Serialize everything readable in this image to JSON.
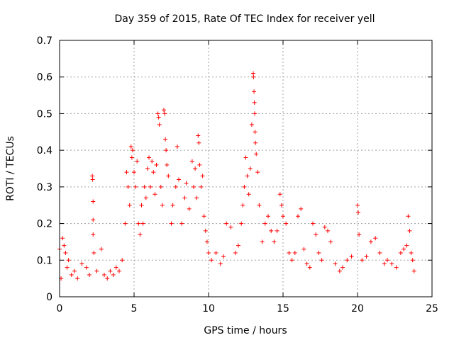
{
  "colors": {
    "series": "#ff0000",
    "axis": "#000000",
    "grid": "#a0a0a0",
    "background": "#ffffff"
  },
  "chart_data": {
    "type": "scatter",
    "title": "Day 359 of 2015, Rate Of TEC Index for receiver yell",
    "xlabel": "GPS time / hours",
    "ylabel": "ROTI / TECUs",
    "xlim": [
      0,
      25
    ],
    "ylim": [
      0,
      0.7
    ],
    "xticks": [
      0,
      5,
      10,
      15,
      20,
      25
    ],
    "yticks": [
      0,
      0.1,
      0.2,
      0.3,
      0.4,
      0.5,
      0.6,
      0.7
    ],
    "grid": true,
    "marker": "plus",
    "series": [
      {
        "name": "ROTI",
        "points": [
          [
            0.0,
            0.13
          ],
          [
            0.1,
            0.05
          ],
          [
            0.2,
            0.16
          ],
          [
            0.3,
            0.14
          ],
          [
            0.4,
            0.12
          ],
          [
            0.5,
            0.08
          ],
          [
            0.6,
            0.1
          ],
          [
            0.8,
            0.06
          ],
          [
            1.0,
            0.07
          ],
          [
            1.2,
            0.05
          ],
          [
            1.5,
            0.09
          ],
          [
            1.8,
            0.08
          ],
          [
            2.0,
            0.06
          ],
          [
            2.2,
            0.33
          ],
          [
            2.22,
            0.32
          ],
          [
            2.25,
            0.26
          ],
          [
            2.25,
            0.21
          ],
          [
            2.25,
            0.17
          ],
          [
            2.3,
            0.12
          ],
          [
            2.5,
            0.07
          ],
          [
            2.8,
            0.13
          ],
          [
            3.0,
            0.06
          ],
          [
            3.2,
            0.05
          ],
          [
            3.4,
            0.07
          ],
          [
            3.6,
            0.06
          ],
          [
            3.8,
            0.08
          ],
          [
            4.0,
            0.07
          ],
          [
            4.2,
            0.1
          ],
          [
            4.4,
            0.2
          ],
          [
            4.5,
            0.34
          ],
          [
            4.6,
            0.3
          ],
          [
            4.7,
            0.25
          ],
          [
            4.8,
            0.41
          ],
          [
            4.85,
            0.38
          ],
          [
            4.9,
            0.4
          ],
          [
            5.0,
            0.34
          ],
          [
            5.1,
            0.3
          ],
          [
            5.2,
            0.37
          ],
          [
            5.3,
            0.2
          ],
          [
            5.4,
            0.17
          ],
          [
            5.5,
            0.25
          ],
          [
            5.6,
            0.2
          ],
          [
            5.7,
            0.3
          ],
          [
            5.8,
            0.27
          ],
          [
            5.9,
            0.35
          ],
          [
            6.0,
            0.38
          ],
          [
            6.1,
            0.3
          ],
          [
            6.2,
            0.37
          ],
          [
            6.3,
            0.34
          ],
          [
            6.4,
            0.28
          ],
          [
            6.5,
            0.36
          ],
          [
            6.6,
            0.5
          ],
          [
            6.65,
            0.49
          ],
          [
            6.7,
            0.47
          ],
          [
            6.8,
            0.3
          ],
          [
            6.9,
            0.25
          ],
          [
            7.0,
            0.51
          ],
          [
            7.05,
            0.5
          ],
          [
            7.1,
            0.43
          ],
          [
            7.15,
            0.4
          ],
          [
            7.2,
            0.36
          ],
          [
            7.3,
            0.33
          ],
          [
            7.5,
            0.2
          ],
          [
            7.6,
            0.25
          ],
          [
            7.8,
            0.3
          ],
          [
            7.9,
            0.41
          ],
          [
            8.0,
            0.32
          ],
          [
            8.2,
            0.2
          ],
          [
            8.4,
            0.27
          ],
          [
            8.5,
            0.31
          ],
          [
            8.7,
            0.24
          ],
          [
            8.9,
            0.37
          ],
          [
            9.0,
            0.3
          ],
          [
            9.1,
            0.35
          ],
          [
            9.2,
            0.27
          ],
          [
            9.3,
            0.44
          ],
          [
            9.35,
            0.42
          ],
          [
            9.4,
            0.36
          ],
          [
            9.5,
            0.3
          ],
          [
            9.6,
            0.33
          ],
          [
            9.7,
            0.22
          ],
          [
            9.8,
            0.18
          ],
          [
            9.9,
            0.15
          ],
          [
            10.0,
            0.12
          ],
          [
            10.2,
            0.1
          ],
          [
            10.5,
            0.12
          ],
          [
            10.8,
            0.09
          ],
          [
            11.0,
            0.11
          ],
          [
            11.2,
            0.2
          ],
          [
            11.5,
            0.19
          ],
          [
            11.8,
            0.12
          ],
          [
            12.0,
            0.14
          ],
          [
            12.2,
            0.2
          ],
          [
            12.3,
            0.25
          ],
          [
            12.4,
            0.3
          ],
          [
            12.5,
            0.38
          ],
          [
            12.6,
            0.33
          ],
          [
            12.7,
            0.28
          ],
          [
            12.8,
            0.35
          ],
          [
            12.9,
            0.47
          ],
          [
            13.0,
            0.61
          ],
          [
            13.02,
            0.6
          ],
          [
            13.05,
            0.56
          ],
          [
            13.08,
            0.53
          ],
          [
            13.1,
            0.5
          ],
          [
            13.12,
            0.45
          ],
          [
            13.15,
            0.42
          ],
          [
            13.2,
            0.39
          ],
          [
            13.3,
            0.34
          ],
          [
            13.4,
            0.25
          ],
          [
            13.6,
            0.15
          ],
          [
            13.8,
            0.2
          ],
          [
            14.0,
            0.22
          ],
          [
            14.2,
            0.18
          ],
          [
            14.4,
            0.15
          ],
          [
            14.6,
            0.18
          ],
          [
            14.8,
            0.28
          ],
          [
            14.9,
            0.25
          ],
          [
            15.0,
            0.22
          ],
          [
            15.2,
            0.2
          ],
          [
            15.4,
            0.12
          ],
          [
            15.6,
            0.1
          ],
          [
            15.8,
            0.12
          ],
          [
            16.0,
            0.22
          ],
          [
            16.2,
            0.24
          ],
          [
            16.4,
            0.13
          ],
          [
            16.6,
            0.09
          ],
          [
            16.8,
            0.08
          ],
          [
            17.0,
            0.2
          ],
          [
            17.2,
            0.17
          ],
          [
            17.4,
            0.12
          ],
          [
            17.6,
            0.1
          ],
          [
            17.8,
            0.19
          ],
          [
            18.0,
            0.18
          ],
          [
            18.2,
            0.15
          ],
          [
            18.5,
            0.09
          ],
          [
            18.8,
            0.07
          ],
          [
            19.0,
            0.08
          ],
          [
            19.3,
            0.1
          ],
          [
            19.6,
            0.11
          ],
          [
            20.0,
            0.25
          ],
          [
            20.05,
            0.23
          ],
          [
            20.1,
            0.17
          ],
          [
            20.3,
            0.1
          ],
          [
            20.6,
            0.11
          ],
          [
            20.9,
            0.15
          ],
          [
            21.2,
            0.16
          ],
          [
            21.5,
            0.12
          ],
          [
            21.8,
            0.09
          ],
          [
            22.0,
            0.1
          ],
          [
            22.3,
            0.09
          ],
          [
            22.6,
            0.08
          ],
          [
            22.9,
            0.12
          ],
          [
            23.1,
            0.13
          ],
          [
            23.3,
            0.14
          ],
          [
            23.4,
            0.22
          ],
          [
            23.5,
            0.18
          ],
          [
            23.6,
            0.12
          ],
          [
            23.7,
            0.1
          ],
          [
            23.8,
            0.07
          ]
        ]
      }
    ]
  }
}
